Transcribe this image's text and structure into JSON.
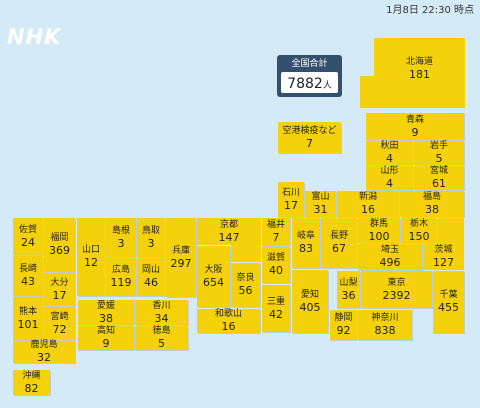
{
  "timestamp": "1月8日 22:30 時点",
  "logo": "NHK",
  "total": {
    "label": "全国合計",
    "value": 7882,
    "unit": "人"
  },
  "colors": {
    "background": "#d4ebf7",
    "tile": "#f5d10c",
    "total_header": "#34506e"
  },
  "airport": {
    "name": "空港検疫など",
    "count": 7
  },
  "prefectures": {
    "hokkaido": {
      "name": "北海道",
      "count": 181
    },
    "aomori": {
      "name": "青森",
      "count": 9
    },
    "akita": {
      "name": "秋田",
      "count": 4
    },
    "iwate": {
      "name": "岩手",
      "count": 5
    },
    "yamagata": {
      "name": "山形",
      "count": 4
    },
    "miyagi": {
      "name": "宮城",
      "count": 61
    },
    "ishikawa": {
      "name": "石川",
      "count": 17
    },
    "toyama": {
      "name": "富山",
      "count": 31
    },
    "niigata": {
      "name": "新潟",
      "count": 16
    },
    "fukushima": {
      "name": "福島",
      "count": 38
    },
    "fukui": {
      "name": "福井",
      "count": 7
    },
    "gifu": {
      "name": "岐阜",
      "count": 83
    },
    "nagano": {
      "name": "長野",
      "count": 67
    },
    "gunma": {
      "name": "群馬",
      "count": 100
    },
    "tochigi": {
      "name": "栃木",
      "count": 150
    },
    "ibaraki": {
      "name": "茨城",
      "count": 127
    },
    "saitama": {
      "name": "埼玉",
      "count": 496
    },
    "yamanashi": {
      "name": "山梨",
      "count": 36
    },
    "tokyo": {
      "name": "東京",
      "count": 2392
    },
    "chiba": {
      "name": "千葉",
      "count": 455
    },
    "shizuoka": {
      "name": "静岡",
      "count": 92
    },
    "kanagawa": {
      "name": "神奈川",
      "count": 838
    },
    "aichi": {
      "name": "愛知",
      "count": 405
    },
    "shiga": {
      "name": "滋賀",
      "count": 40
    },
    "kyoto": {
      "name": "京都",
      "count": 147
    },
    "hyogo": {
      "name": "兵庫",
      "count": 297
    },
    "osaka": {
      "name": "大阪",
      "count": 654
    },
    "nara": {
      "name": "奈良",
      "count": 56
    },
    "mie": {
      "name": "三重",
      "count": 42
    },
    "wakayama": {
      "name": "和歌山",
      "count": 16
    },
    "yamaguchi": {
      "name": "山口",
      "count": 12
    },
    "shimane": {
      "name": "島根",
      "count": 3
    },
    "tottori": {
      "name": "鳥取",
      "count": 3
    },
    "hiroshima": {
      "name": "広島",
      "count": 119
    },
    "okayama": {
      "name": "岡山",
      "count": 46
    },
    "ehime": {
      "name": "愛媛",
      "count": 38
    },
    "kagawa": {
      "name": "香川",
      "count": 34
    },
    "kochi": {
      "name": "高知",
      "count": 9
    },
    "tokushima": {
      "name": "徳島",
      "count": 5
    },
    "saga": {
      "name": "佐賀",
      "count": 24
    },
    "fukuoka": {
      "name": "福岡",
      "count": 369
    },
    "nagasaki": {
      "name": "長崎",
      "count": 43
    },
    "oita": {
      "name": "大分",
      "count": 17
    },
    "kumamoto": {
      "name": "熊本",
      "count": 101
    },
    "miyazaki": {
      "name": "宮崎",
      "count": 72
    },
    "kagoshima": {
      "name": "鹿児島",
      "count": 32
    },
    "okinawa": {
      "name": "沖縄",
      "count": 82
    }
  }
}
